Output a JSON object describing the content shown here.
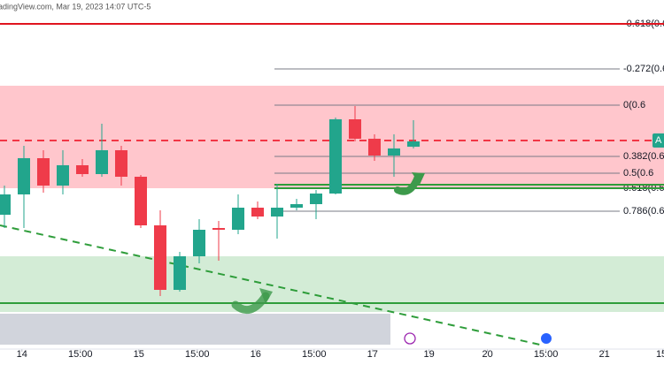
{
  "chart_data": {
    "type": "candlestick",
    "watermark": "adingView.com, Mar 19, 2023 14:07 UTC-5",
    "up_color": "#22a58c",
    "down_color": "#ef3b4a",
    "xlim": [
      -0.227,
      33.864
    ],
    "ylim": [
      35,
      430
    ],
    "xticks": [
      {
        "value": 0.9,
        "label": "14"
      },
      {
        "value": 3.9,
        "label": "15:00"
      },
      {
        "value": 6.9,
        "label": "15"
      },
      {
        "value": 9.9,
        "label": "15:00"
      },
      {
        "value": 12.9,
        "label": "16"
      },
      {
        "value": 15.9,
        "label": "15:00"
      },
      {
        "value": 18.9,
        "label": "17"
      },
      {
        "value": 21.8,
        "label": "19"
      },
      {
        "value": 24.8,
        "label": "20"
      },
      {
        "value": 27.8,
        "label": "15:00"
      },
      {
        "value": 30.8,
        "label": "21"
      },
      {
        "value": 33.8,
        "label": "15:"
      }
    ],
    "x": [
      0,
      1,
      2,
      3,
      4,
      5,
      6,
      7,
      8,
      9,
      10,
      11,
      12,
      13,
      14,
      15,
      16,
      17,
      18,
      19,
      20,
      21
    ],
    "open": [
      187,
      210,
      251,
      220,
      243,
      233,
      260,
      230,
      175,
      102,
      140,
      172,
      170,
      195,
      185,
      195,
      199,
      211,
      295,
      273,
      254,
      264
    ],
    "high": [
      220,
      265,
      260,
      260,
      250,
      290,
      265,
      232,
      192,
      145,
      182,
      180,
      210,
      202,
      222,
      205,
      215,
      297,
      310,
      278,
      278,
      294
    ],
    "low": [
      172,
      172,
      212,
      210,
      230,
      230,
      220,
      172,
      95,
      100,
      132,
      135,
      165,
      182,
      160,
      192,
      182,
      210,
      270,
      248,
      230,
      262
    ],
    "close": [
      210,
      251,
      220,
      243,
      233,
      260,
      230,
      175,
      102,
      140,
      170,
      170,
      195,
      185,
      195,
      199,
      211,
      295,
      273,
      254,
      262,
      270
    ],
    "zones": [
      {
        "low": 217,
        "high": 333,
        "color": "#ffc6cc"
      },
      {
        "low": 77,
        "high": 140,
        "color": "#d3ecd6"
      }
    ],
    "levels": [
      {
        "value": 403,
        "color": "#e0151f",
        "style": "solid"
      },
      {
        "value": 271,
        "color": "#f23645",
        "style": "dashed"
      },
      {
        "value": 221,
        "color": "#2e9d3a",
        "style": "solid",
        "x_from": 13.86
      },
      {
        "value": 217,
        "color": "#2e9d3a",
        "style": "solid",
        "x_from": 13.86
      },
      {
        "value": 87,
        "color": "#2e9d3a",
        "style": "solid"
      }
    ],
    "fib_levels": [
      {
        "label": "-0.618(0.6",
        "value": 403
      },
      {
        "label": "-0.272(0.6",
        "value": 352
      },
      {
        "label": "0(0.6",
        "value": 311
      },
      {
        "label": "0.382(0.6",
        "value": 253
      },
      {
        "label": "0.5(0.6",
        "value": 234
      },
      {
        "label": "0.618(0.6",
        "value": 217
      },
      {
        "label": "0.786(0.6",
        "value": 191
      }
    ],
    "trendline": {
      "x": [
        -0.227,
        27.5
      ],
      "values": [
        175,
        40
      ],
      "color": "#2e9d3a"
    },
    "price_tag": {
      "label": "A",
      "value": 271,
      "color": "#22a58c"
    }
  }
}
